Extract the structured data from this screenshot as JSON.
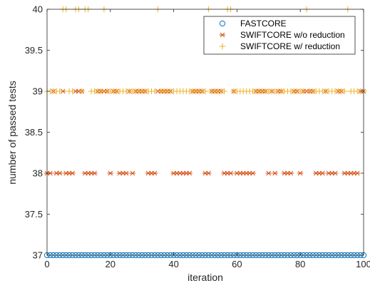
{
  "chart_data": {
    "type": "scatter",
    "xlabel": "iteration",
    "ylabel": "number of passed tests",
    "xlim": [
      0,
      100
    ],
    "ylim": [
      37,
      40
    ],
    "xticks": [
      "0",
      "20",
      "40",
      "60",
      "80",
      "100"
    ],
    "yticks": [
      "37",
      "37.5",
      "38",
      "38.5",
      "39",
      "39.5",
      "40"
    ],
    "grid": false,
    "legend_position": "top-right",
    "series": [
      {
        "name": "FASTCORE",
        "marker": "circle",
        "color": "#0072BD",
        "x": [
          0,
          1,
          2,
          3,
          4,
          5,
          6,
          7,
          8,
          9,
          10,
          11,
          12,
          13,
          14,
          15,
          16,
          17,
          18,
          19,
          20,
          21,
          22,
          23,
          24,
          25,
          26,
          27,
          28,
          29,
          30,
          31,
          32,
          33,
          34,
          35,
          36,
          37,
          38,
          39,
          40,
          41,
          42,
          43,
          44,
          45,
          46,
          47,
          48,
          49,
          50,
          51,
          52,
          53,
          54,
          55,
          56,
          57,
          58,
          59,
          60,
          61,
          62,
          63,
          64,
          65,
          66,
          67,
          68,
          69,
          70,
          71,
          72,
          73,
          74,
          75,
          76,
          77,
          78,
          79,
          80,
          81,
          82,
          83,
          84,
          85,
          86,
          87,
          88,
          89,
          90,
          91,
          92,
          93,
          94,
          95,
          96,
          97,
          98,
          99,
          100
        ],
        "y": [
          37,
          37,
          37,
          37,
          37,
          37,
          37,
          37,
          37,
          37,
          37,
          37,
          37,
          37,
          37,
          37,
          37,
          37,
          37,
          37,
          37,
          37,
          37,
          37,
          37,
          37,
          37,
          37,
          37,
          37,
          37,
          37,
          37,
          37,
          37,
          37,
          37,
          37,
          37,
          37,
          37,
          37,
          37,
          37,
          37,
          37,
          37,
          37,
          37,
          37,
          37,
          37,
          37,
          37,
          37,
          37,
          37,
          37,
          37,
          37,
          37,
          37,
          37,
          37,
          37,
          37,
          37,
          37,
          37,
          37,
          37,
          37,
          37,
          37,
          37,
          37,
          37,
          37,
          37,
          37,
          37,
          37,
          37,
          37,
          37,
          37,
          37,
          37,
          37,
          37,
          37,
          37,
          37,
          37,
          37,
          37,
          37,
          37,
          37,
          37,
          37
        ]
      },
      {
        "name": "SWIFTCORE w/o reduction",
        "marker": "asterisk",
        "color": "#D95319",
        "x": [
          0,
          1,
          2,
          3,
          4,
          5,
          6,
          7,
          8,
          9,
          10,
          11,
          12,
          13,
          14,
          15,
          16,
          17,
          18,
          19,
          20,
          21,
          22,
          23,
          24,
          25,
          26,
          27,
          28,
          29,
          30,
          31,
          32,
          33,
          34,
          35,
          36,
          37,
          38,
          39,
          40,
          41,
          42,
          43,
          44,
          45,
          46,
          47,
          48,
          49,
          50,
          51,
          52,
          53,
          54,
          55,
          56,
          57,
          58,
          59,
          60,
          61,
          62,
          63,
          64,
          65,
          66,
          67,
          68,
          69,
          70,
          71,
          72,
          73,
          74,
          75,
          76,
          77,
          78,
          79,
          80,
          81,
          82,
          83,
          84,
          85,
          86,
          87,
          88,
          89,
          90,
          91,
          92,
          93,
          94,
          95,
          96,
          97,
          98,
          99,
          100
        ],
        "y": [
          38,
          38,
          39,
          38,
          38,
          39,
          38,
          38,
          38,
          39,
          39,
          39,
          38,
          38,
          38,
          38,
          39,
          39,
          39,
          39,
          38,
          39,
          39,
          38,
          38,
          38,
          39,
          38,
          39,
          39,
          39,
          39,
          38,
          38,
          38,
          39,
          39,
          39,
          39,
          39,
          38,
          38,
          38,
          38,
          38,
          38,
          39,
          39,
          39,
          39,
          38,
          38,
          39,
          39,
          39,
          39,
          38,
          38,
          38,
          39,
          38,
          38,
          38,
          38,
          38,
          38,
          39,
          39,
          39,
          39,
          38,
          39,
          38,
          39,
          39,
          38,
          38,
          38,
          39,
          39,
          38,
          39,
          39,
          39,
          39,
          38,
          38,
          38,
          39,
          38,
          38,
          38,
          39,
          39,
          38,
          38,
          38,
          38,
          38,
          39,
          39
        ]
      },
      {
        "name": "SWIFTCORE w/ reduction",
        "marker": "plus",
        "color": "#EDB120",
        "x": [
          0,
          1,
          2,
          3,
          4,
          5,
          6,
          7,
          8,
          9,
          10,
          11,
          12,
          13,
          14,
          15,
          16,
          17,
          18,
          19,
          20,
          21,
          22,
          23,
          24,
          25,
          26,
          27,
          28,
          29,
          30,
          31,
          32,
          33,
          34,
          35,
          36,
          37,
          38,
          39,
          40,
          41,
          42,
          43,
          44,
          45,
          46,
          47,
          48,
          49,
          50,
          51,
          52,
          53,
          54,
          55,
          56,
          57,
          58,
          59,
          60,
          61,
          62,
          63,
          64,
          65,
          66,
          67,
          68,
          69,
          70,
          71,
          72,
          73,
          74,
          75,
          76,
          77,
          78,
          79,
          80,
          81,
          82,
          83,
          84,
          85,
          86,
          87,
          88,
          89,
          90,
          91,
          92,
          93,
          94,
          95,
          96,
          97,
          98,
          99,
          100
        ],
        "y": [
          39,
          39,
          39,
          39,
          39,
          40,
          40,
          39,
          39,
          40,
          40,
          39,
          40,
          40,
          39,
          39,
          39,
          39,
          40,
          39,
          39,
          39,
          39,
          39,
          39,
          39,
          39,
          39,
          39,
          39,
          39,
          39,
          39,
          39,
          39,
          40,
          39,
          39,
          39,
          39,
          39,
          39,
          39,
          39,
          39,
          39,
          39,
          39,
          39,
          39,
          39,
          40,
          39,
          39,
          39,
          39,
          39,
          40,
          40,
          39,
          39,
          39,
          39,
          39,
          39,
          39,
          39,
          39,
          39,
          39,
          39,
          39,
          39,
          39,
          39,
          39,
          39,
          39,
          39,
          39,
          39,
          39,
          40,
          39,
          39,
          39,
          39,
          39,
          39,
          39,
          39,
          39,
          39,
          39,
          39,
          40,
          39,
          39,
          39,
          39,
          39
        ]
      }
    ]
  }
}
